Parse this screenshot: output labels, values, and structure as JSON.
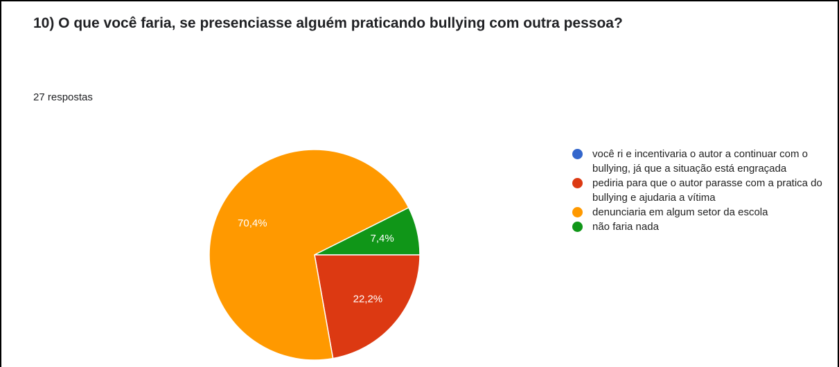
{
  "chart_data": {
    "type": "pie",
    "title": "10) O que você faria, se presenciasse alguém praticando bullying com outra pessoa?",
    "subtitle": "27 respostas",
    "categories": [
      "você ri e incentivaria o autor a continuar com o bullying, já que a situação está engraçada",
      "pediria para que o autor parasse com a pratica do bullying e ajudaria a vítima",
      "denunciaria em algum setor da escola",
      "não faria nada"
    ],
    "values": [
      0,
      22.2,
      70.4,
      7.4
    ],
    "value_labels": [
      null,
      "22,2%",
      "70,4%",
      "7,4%"
    ],
    "colors": [
      "#3366cc",
      "#dc3912",
      "#ff9900",
      "#109618"
    ],
    "legend": "right"
  }
}
